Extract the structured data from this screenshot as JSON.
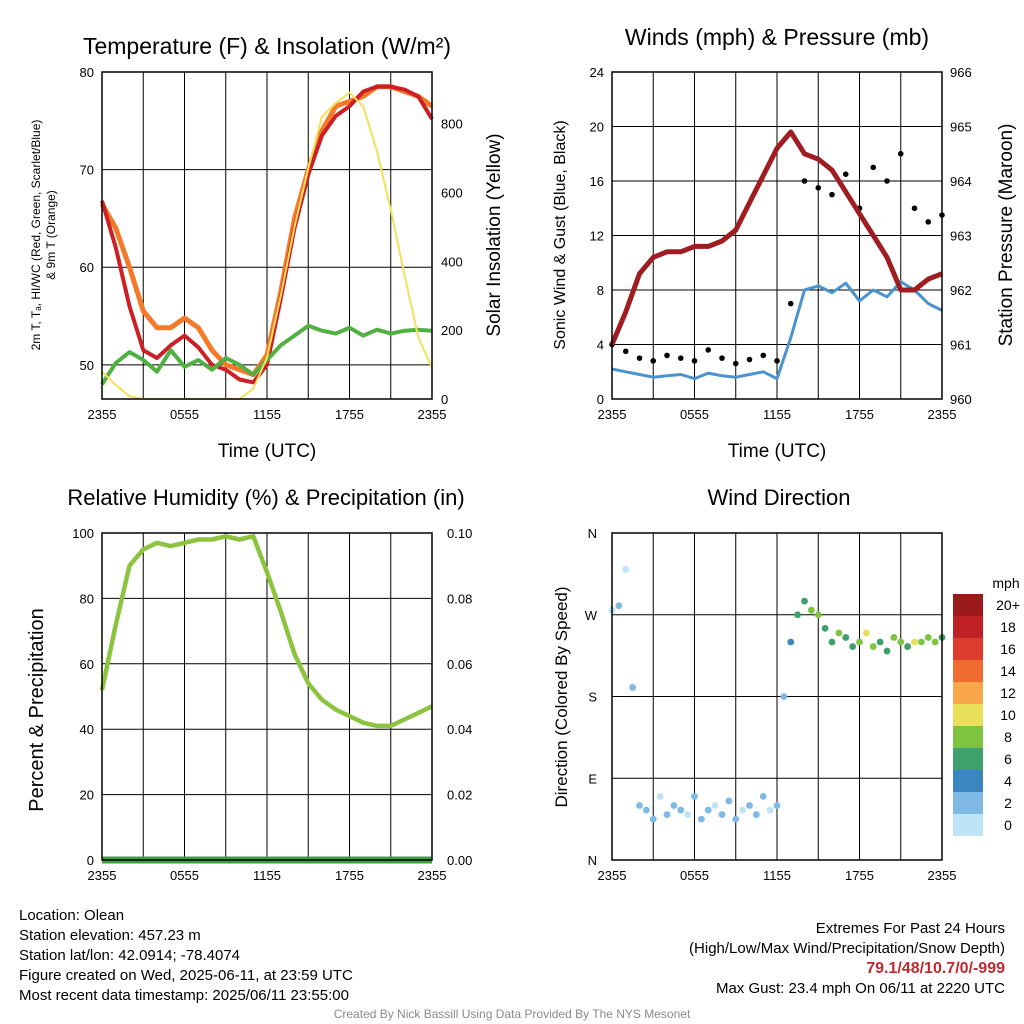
{
  "chart_data": [
    {
      "id": "temp",
      "type": "line",
      "title": "Temperature (F) & Insolation (W/m²)",
      "xlabel": "Time (UTC)",
      "ylabel": "2m T, Tₐ, HI/WC (Red, Green, Scarlet/Blue)",
      "ylabel2": "& 9m T (Orange)",
      "y2label": "Solar Insolation (Yellow)",
      "xticks": [
        "2355",
        "0555",
        "1155",
        "1755",
        "2355"
      ],
      "ylim": [
        46.5,
        80
      ],
      "yticks": [
        50,
        60,
        70,
        80
      ],
      "y2lim": [
        0,
        950
      ],
      "y2ticks": [
        0,
        200,
        400,
        600,
        800
      ],
      "x": [
        0,
        1,
        2,
        3,
        4,
        5,
        6,
        7,
        8,
        9,
        10,
        11,
        12,
        13,
        14,
        15,
        16,
        17,
        18,
        19,
        20,
        21,
        22,
        23,
        24
      ],
      "series": [
        {
          "color": "#f47a2a",
          "axis": "left",
          "width": 5,
          "values": [
            66.5,
            64,
            60,
            55.5,
            53.8,
            53.8,
            54.8,
            53.8,
            51.5,
            50,
            49.5,
            49,
            51,
            57.5,
            65,
            70,
            74,
            76.5,
            77,
            77.5,
            78.5,
            78.5,
            78,
            77.5,
            76.5
          ]
        },
        {
          "color": "#cc2027",
          "axis": "left",
          "width": 4,
          "values": [
            66.8,
            62,
            56,
            51.5,
            50.7,
            52,
            53,
            51.8,
            50,
            49.5,
            48.5,
            48.2,
            50,
            56.8,
            64,
            69.5,
            73.5,
            75.5,
            76.5,
            78,
            78.5,
            78.5,
            78.2,
            77.5,
            75.2
          ]
        },
        {
          "color": "#52b043",
          "axis": "left",
          "width": 4,
          "values": [
            48,
            50.2,
            51.3,
            50.5,
            49.3,
            51.5,
            49.8,
            50.5,
            49.5,
            50.7,
            50,
            49,
            50.5,
            52,
            53,
            54,
            53.5,
            53.2,
            53.8,
            53,
            53.6,
            53.2,
            53.5,
            53.6,
            53.5
          ]
        },
        {
          "color": "#f6e05a",
          "axis": "right",
          "width": 2,
          "values": [
            80,
            40,
            8,
            0,
            0,
            0,
            0,
            0,
            0,
            0,
            0,
            30,
            120,
            300,
            500,
            670,
            820,
            860,
            890,
            850,
            720,
            550,
            360,
            180,
            90
          ]
        }
      ]
    },
    {
      "id": "wind",
      "type": "scatter",
      "title": "Winds (mph) & Pressure (mb)",
      "xlabel": "Time (UTC)",
      "ylabel": "Sonic Wind & Gust (Blue, Black)",
      "y2label": "Station Pressure (Maroon)",
      "xticks": [
        "2355",
        "0555",
        "1155",
        "1755",
        "2355"
      ],
      "ylim": [
        0,
        24
      ],
      "yticks": [
        0,
        4,
        8,
        12,
        16,
        20,
        24
      ],
      "y2lim": [
        960,
        966
      ],
      "y2ticks": [
        960,
        961,
        962,
        963,
        964,
        965,
        966
      ],
      "x": [
        0,
        1,
        2,
        3,
        4,
        5,
        6,
        7,
        8,
        9,
        10,
        11,
        12,
        13,
        14,
        15,
        16,
        17,
        18,
        19,
        20,
        21,
        22,
        23,
        24
      ],
      "wind": [
        2.2,
        2.0,
        1.8,
        1.6,
        1.7,
        1.8,
        1.5,
        1.9,
        1.7,
        1.6,
        1.8,
        2.0,
        1.5,
        4.5,
        8.0,
        8.3,
        7.8,
        8.5,
        7.2,
        8.0,
        7.5,
        8.6,
        8.0,
        7.0,
        6.5
      ],
      "gust": [
        4.0,
        3.5,
        3.0,
        2.8,
        3.2,
        3.0,
        2.8,
        3.6,
        3.0,
        2.6,
        2.9,
        3.2,
        2.8,
        7.0,
        16.0,
        15.5,
        15.0,
        16.5,
        14.0,
        17.0,
        16.0,
        18.0,
        14.0,
        13.0,
        13.5
      ],
      "pressure": [
        961.0,
        961.6,
        962.3,
        962.6,
        962.7,
        962.7,
        962.8,
        962.8,
        962.9,
        963.1,
        963.6,
        964.1,
        964.6,
        964.9,
        964.5,
        964.4,
        964.2,
        963.8,
        963.4,
        963.0,
        962.6,
        962.0,
        962.0,
        962.2,
        962.3
      ]
    },
    {
      "id": "rh",
      "type": "line",
      "title": "Relative Humidity (%) & Precipitation (in)",
      "ylabel": "Percent & Precipitation",
      "xticks": [
        "2355",
        "0555",
        "1155",
        "1755",
        "2355"
      ],
      "ylim": [
        0,
        100
      ],
      "yticks": [
        0,
        20,
        40,
        60,
        80,
        100
      ],
      "y2lim": [
        0,
        0.1
      ],
      "y2ticks": [
        "0.00",
        "0.02",
        "0.04",
        "0.06",
        "0.08",
        "0.10"
      ],
      "x": [
        0,
        1,
        2,
        3,
        4,
        5,
        6,
        7,
        8,
        9,
        10,
        11,
        12,
        13,
        14,
        15,
        16,
        17,
        18,
        19,
        20,
        21,
        22,
        23,
        24
      ],
      "series": [
        {
          "name": "rh",
          "color": "#8cc43f",
          "values": [
            52,
            72,
            90,
            95,
            97,
            96,
            97,
            98,
            98,
            99,
            98,
            99,
            88,
            76,
            63,
            54,
            49,
            46,
            44,
            42,
            41,
            41,
            43,
            45,
            47
          ]
        },
        {
          "name": "precip",
          "color": "#3f9e3f",
          "values": [
            0,
            0,
            0,
            0,
            0,
            0,
            0,
            0,
            0,
            0,
            0,
            0,
            0,
            0,
            0,
            0,
            0,
            0,
            0,
            0,
            0,
            0,
            0,
            0,
            0
          ]
        }
      ]
    },
    {
      "id": "dir",
      "type": "scatter",
      "title": "Wind Direction",
      "ylabel": "Direction (Colored By Speed)",
      "xticks": [
        "2355",
        "0555",
        "1155",
        "1755",
        "2355"
      ],
      "yticks": [
        "N",
        "E",
        "S",
        "W",
        "N"
      ],
      "ylim": [
        0,
        360
      ],
      "x": [
        0,
        0.5,
        1,
        1.5,
        2,
        2.5,
        3,
        3.5,
        4,
        4.5,
        5,
        5.5,
        6,
        6.5,
        7,
        7.5,
        8,
        8.5,
        9,
        9.5,
        10,
        10.5,
        11,
        11.5,
        12,
        12.5,
        13,
        13.5,
        14,
        14.5,
        15,
        15.5,
        16,
        16.5,
        17,
        17.5,
        18,
        18.5,
        19,
        19.5,
        20,
        20.5,
        21,
        21.5,
        22,
        22.5,
        23,
        23.5,
        24
      ],
      "dir": [
        275,
        280,
        320,
        190,
        60,
        55,
        45,
        70,
        50,
        60,
        55,
        50,
        70,
        45,
        55,
        60,
        50,
        65,
        45,
        55,
        60,
        50,
        70,
        55,
        60,
        180,
        240,
        270,
        285,
        275,
        270,
        255,
        240,
        250,
        245,
        235,
        240,
        250,
        235,
        240,
        230,
        245,
        240,
        235,
        240,
        240,
        245,
        240,
        245
      ],
      "speed": [
        1,
        2,
        1,
        2,
        2,
        2,
        3,
        1,
        2,
        3,
        2,
        1,
        2,
        3,
        2,
        1,
        2,
        3,
        2,
        1,
        2,
        3,
        2,
        1,
        2,
        3,
        4,
        6,
        7,
        8,
        9,
        6,
        7,
        8,
        6,
        7,
        9,
        10,
        8,
        7,
        6,
        8,
        9,
        7,
        10,
        9,
        8,
        9,
        7
      ],
      "legend_title": "mph",
      "legend": [
        {
          "label": "20+",
          "color": "#9c1a1c"
        },
        {
          "label": "18",
          "color": "#be2026"
        },
        {
          "label": "16",
          "color": "#dd3b2c"
        },
        {
          "label": "14",
          "color": "#f06b2f"
        },
        {
          "label": "12",
          "color": "#f9a74a"
        },
        {
          "label": "10",
          "color": "#e8df5a"
        },
        {
          "label": "8",
          "color": "#7fc441"
        },
        {
          "label": "6",
          "color": "#3ea06a"
        },
        {
          "label": "4",
          "color": "#3b86c0"
        },
        {
          "label": "2",
          "color": "#7fb9e6"
        },
        {
          "label": "0",
          "color": "#bfe3f7"
        }
      ]
    }
  ],
  "station": {
    "location": "Location: Olean",
    "elevation": "Station elevation: 457.23 m",
    "latlon": "Station lat/lon: 42.0914; -78.4074",
    "created": "Figure created on Wed, 2025-06-11, at 23:59 UTC",
    "recent": "Most recent data timestamp: 2025/06/11 23:55:00"
  },
  "extremes": {
    "header": "Extremes For Past 24 Hours",
    "subheader": "(High/Low/Max Wind/Precipitation/Snow Depth)",
    "values": "79.1/48/10.7/0/-999",
    "gust": "Max Gust: 23.4 mph On 06/11 at 2220 UTC"
  },
  "credit": "Created By Nick Bassill Using Data Provided By The NYS Mesonet"
}
